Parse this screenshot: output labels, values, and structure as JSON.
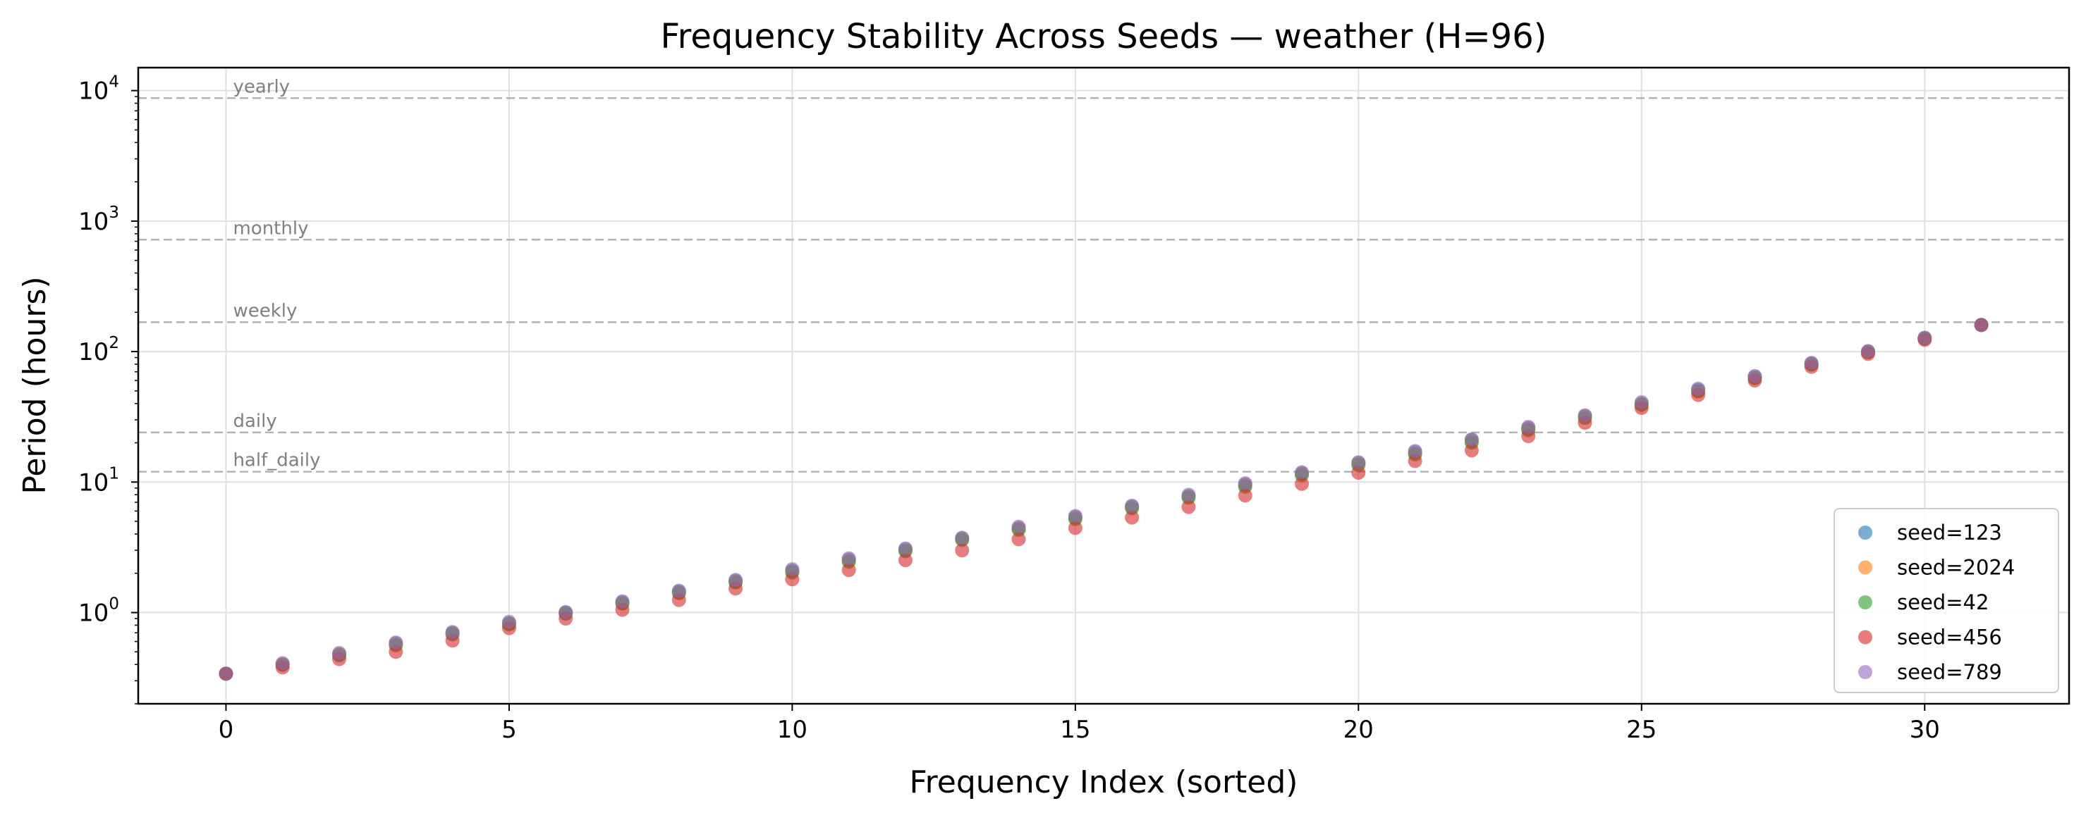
{
  "chart_data": {
    "type": "scatter",
    "title": "Frequency Stability Across Seeds — weather (H=96)",
    "xlabel": "Frequency Index (sorted)",
    "ylabel": "Period (hours)",
    "yscale": "log",
    "xlim": [
      -1.55,
      32.55
    ],
    "ylim": [
      0.2,
      15000
    ],
    "xticks": [
      0,
      5,
      10,
      15,
      20,
      25,
      30
    ],
    "yticks": [
      {
        "value": 1,
        "base": "10",
        "exp": "0"
      },
      {
        "value": 10,
        "base": "10",
        "exp": "1"
      },
      {
        "value": 100,
        "base": "10",
        "exp": "2"
      },
      {
        "value": 1000,
        "base": "10",
        "exp": "3"
      },
      {
        "value": 10000,
        "base": "10",
        "exp": "4"
      }
    ],
    "grid": true,
    "legend_position": "bottom-right",
    "reference_lines": [
      {
        "label": "yearly",
        "value": 8760
      },
      {
        "label": "monthly",
        "value": 720
      },
      {
        "label": "weekly",
        "value": 168
      },
      {
        "label": "daily",
        "value": 24
      },
      {
        "label": "half_daily",
        "value": 12
      }
    ],
    "x": [
      0,
      1,
      2,
      3,
      4,
      5,
      6,
      7,
      8,
      9,
      10,
      11,
      12,
      13,
      14,
      15,
      16,
      17,
      18,
      19,
      20,
      21,
      22,
      23,
      24,
      25,
      26,
      27,
      28,
      29,
      30,
      31
    ],
    "series": [
      {
        "name": "seed=123",
        "color": "#1f77b4",
        "values": [
          0.34,
          0.4,
          0.48,
          0.58,
          0.7,
          0.83,
          1.0,
          1.2,
          1.45,
          1.75,
          2.1,
          2.55,
          3.05,
          3.7,
          4.45,
          5.4,
          6.5,
          7.8,
          9.6,
          11.7,
          14.0,
          17.0,
          21.0,
          26.0,
          32.0,
          40.0,
          51.0,
          64.0,
          81.0,
          100,
          127,
          160
        ]
      },
      {
        "name": "seed=2024",
        "color": "#ff7f0e",
        "values": [
          0.34,
          0.4,
          0.48,
          0.57,
          0.69,
          0.82,
          0.99,
          1.18,
          1.42,
          1.72,
          2.05,
          2.5,
          3.0,
          3.65,
          4.4,
          5.3,
          6.4,
          7.7,
          9.4,
          11.5,
          13.8,
          16.7,
          20.5,
          25.5,
          31.5,
          39.5,
          50.0,
          63.0,
          80.0,
          99,
          126,
          160
        ]
      },
      {
        "name": "seed=42",
        "color": "#2ca02c",
        "values": [
          0.34,
          0.4,
          0.47,
          0.56,
          0.68,
          0.81,
          0.98,
          1.17,
          1.41,
          1.7,
          2.03,
          2.45,
          2.95,
          3.6,
          4.3,
          5.2,
          6.3,
          7.6,
          9.2,
          11.3,
          13.5,
          16.3,
          20.0,
          25.0,
          31.0,
          39.0,
          49.5,
          62.5,
          79.5,
          99,
          126,
          160
        ]
      },
      {
        "name": "seed=456",
        "color": "#d62728",
        "values": [
          0.34,
          0.38,
          0.44,
          0.5,
          0.61,
          0.76,
          0.9,
          1.05,
          1.25,
          1.53,
          1.8,
          2.12,
          2.52,
          3.0,
          3.65,
          4.45,
          5.35,
          6.45,
          7.9,
          9.7,
          11.8,
          14.5,
          17.5,
          22.5,
          28.5,
          37.0,
          46.5,
          60.0,
          76.5,
          96,
          123,
          160
        ]
      },
      {
        "name": "seed=789",
        "color": "#9467bd",
        "values": [
          0.34,
          0.41,
          0.49,
          0.59,
          0.71,
          0.85,
          1.01,
          1.22,
          1.47,
          1.78,
          2.15,
          2.6,
          3.1,
          3.75,
          4.55,
          5.5,
          6.6,
          8.0,
          9.8,
          11.9,
          14.2,
          17.3,
          21.3,
          26.5,
          32.5,
          41.0,
          52.0,
          65.0,
          82.0,
          101,
          128,
          160
        ]
      }
    ]
  }
}
